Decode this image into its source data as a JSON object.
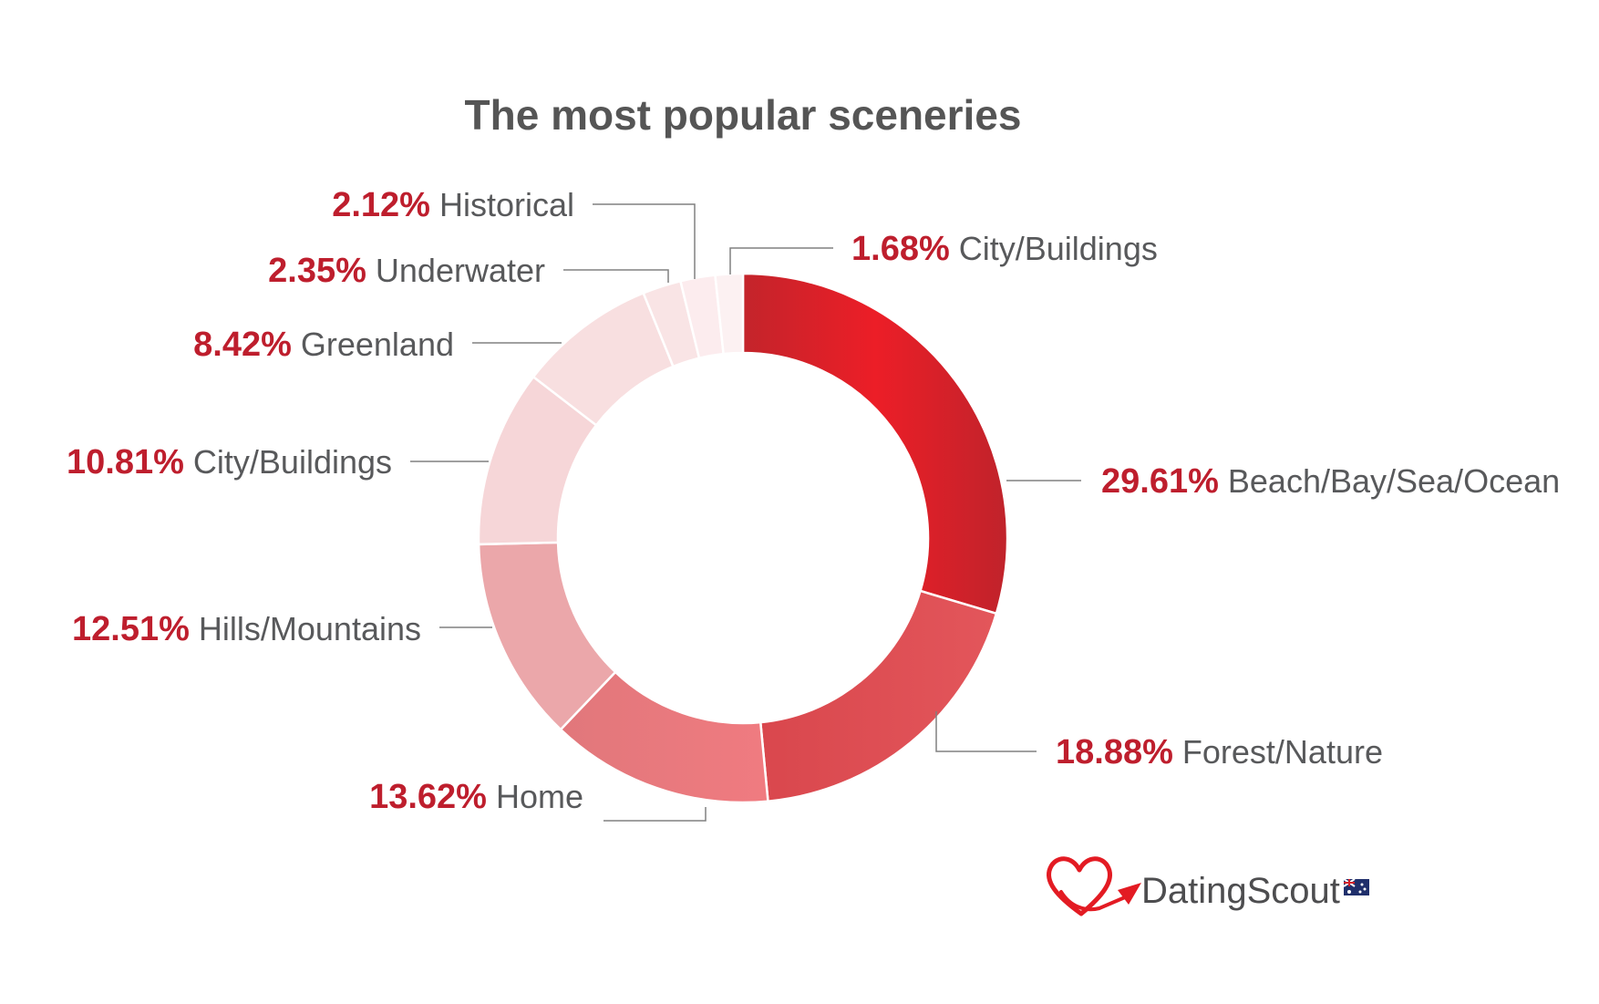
{
  "chart_data": {
    "type": "pie",
    "style": "donut",
    "title": "The most popular sceneries",
    "categories": [
      "Beach/Bay/Sea/Ocean",
      "Forest/Nature",
      "Home",
      "Hills/Mountains",
      "City/Buildings",
      "Greenland",
      "Underwater",
      "Historical",
      "City/Buildings"
    ],
    "values": [
      29.61,
      18.88,
      13.62,
      12.51,
      10.81,
      8.42,
      2.35,
      2.12,
      1.68
    ],
    "value_labels": [
      "29.61%",
      "18.88%",
      "13.62%",
      "12.51%",
      "10.81%",
      "8.42%",
      "2.35%",
      "2.12%",
      "1.68%"
    ],
    "colors": [
      "#d42a30",
      "#dc4f55",
      "#e77b7f",
      "#eba7aa",
      "#f6d6d8",
      "#f8dfe0",
      "#f9e4e5",
      "#fcecee",
      "#fcf1f2"
    ],
    "direction": "clockwise from top",
    "legend": "none (callout labels)"
  },
  "brand": {
    "name": "DatingScout",
    "logo_icon": "heart-paper-plane-logo",
    "flag_icon": "australia-flag-icon",
    "colors": {
      "logo_red": "#e31b23",
      "text": "#4d4d4f"
    }
  }
}
